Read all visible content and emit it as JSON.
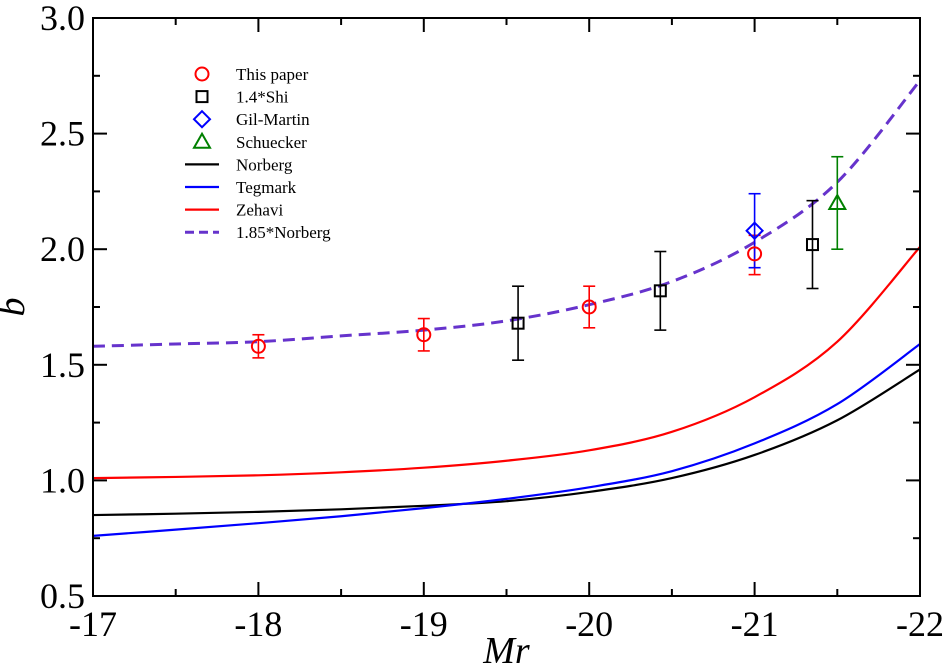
{
  "chart_data": {
    "type": "line",
    "title": "",
    "xlabel": "Mr",
    "ylabel": "b",
    "xlim": [
      -17,
      -22
    ],
    "ylim": [
      0.5,
      3.0
    ],
    "xticks": [
      -17,
      -18,
      -19,
      -20,
      -21,
      -22
    ],
    "xtick_labels": [
      "-17",
      "-18",
      "-19",
      "-20",
      "-21",
      "-22"
    ],
    "yticks": [
      0.5,
      1.0,
      1.5,
      2.0,
      2.5,
      3.0
    ],
    "ytick_labels": [
      "0.5",
      "1.0",
      "1.5",
      "2.0",
      "2.5",
      "3.0"
    ],
    "grid": false,
    "legend_position": "top-left",
    "series": [
      {
        "name": "This paper",
        "kind": "points",
        "marker": "circle",
        "color": "#ff0000",
        "points": [
          {
            "x": -18,
            "y": 1.58,
            "lo": 1.53,
            "hi": 1.63
          },
          {
            "x": -19,
            "y": 1.63,
            "lo": 1.56,
            "hi": 1.7
          },
          {
            "x": -20,
            "y": 1.75,
            "lo": 1.66,
            "hi": 1.84
          },
          {
            "x": -21,
            "y": 1.98,
            "lo": 1.89,
            "hi": 2.06
          }
        ]
      },
      {
        "name": "1.4*Shi",
        "kind": "points",
        "marker": "square",
        "color": "#000000",
        "points": [
          {
            "x": -19.57,
            "y": 1.68,
            "lo": 1.52,
            "hi": 1.84
          },
          {
            "x": -20.43,
            "y": 1.82,
            "lo": 1.65,
            "hi": 1.99
          },
          {
            "x": -21.35,
            "y": 2.02,
            "lo": 1.83,
            "hi": 2.21
          }
        ]
      },
      {
        "name": "Gil-Martin",
        "kind": "points",
        "marker": "diamond",
        "color": "#0000ff",
        "points": [
          {
            "x": -21,
            "y": 2.08,
            "lo": 1.92,
            "hi": 2.24
          }
        ]
      },
      {
        "name": "Schuecker",
        "kind": "points",
        "marker": "triangle",
        "color": "#008000",
        "points": [
          {
            "x": -21.5,
            "y": 2.2,
            "lo": 2.0,
            "hi": 2.4
          }
        ]
      },
      {
        "name": "Norberg",
        "kind": "line",
        "style": "solid",
        "color": "#000000",
        "x": [
          -17,
          -17.5,
          -18,
          -18.5,
          -19,
          -19.5,
          -20,
          -20.5,
          -21,
          -21.5,
          -22
        ],
        "y": [
          0.85,
          0.856,
          0.864,
          0.875,
          0.89,
          0.91,
          0.95,
          1.01,
          1.11,
          1.26,
          1.48
        ]
      },
      {
        "name": "Tegmark",
        "kind": "line",
        "style": "solid",
        "color": "#0000ff",
        "x": [
          -17,
          -17.5,
          -18,
          -18.5,
          -19,
          -19.5,
          -20,
          -20.5,
          -21,
          -21.5,
          -22
        ],
        "y": [
          0.76,
          0.787,
          0.815,
          0.845,
          0.88,
          0.92,
          0.97,
          1.04,
          1.16,
          1.33,
          1.59
        ]
      },
      {
        "name": "Zehavi",
        "kind": "line",
        "style": "solid",
        "color": "#ff0000",
        "x": [
          -17,
          -17.5,
          -18,
          -18.5,
          -19,
          -19.5,
          -20,
          -20.5,
          -21,
          -21.5,
          -22
        ],
        "y": [
          1.01,
          1.015,
          1.022,
          1.035,
          1.055,
          1.085,
          1.13,
          1.21,
          1.36,
          1.6,
          2.01
        ]
      },
      {
        "name": "1.85*Norberg",
        "kind": "line",
        "style": "dashed",
        "color": "#6633cc",
        "x": [
          -17,
          -17.5,
          -18,
          -18.5,
          -19,
          -19.5,
          -20,
          -20.5,
          -21,
          -21.5,
          -22
        ],
        "y": [
          1.58,
          1.59,
          1.6,
          1.625,
          1.65,
          1.69,
          1.76,
          1.86,
          2.03,
          2.29,
          2.73
        ]
      }
    ]
  }
}
